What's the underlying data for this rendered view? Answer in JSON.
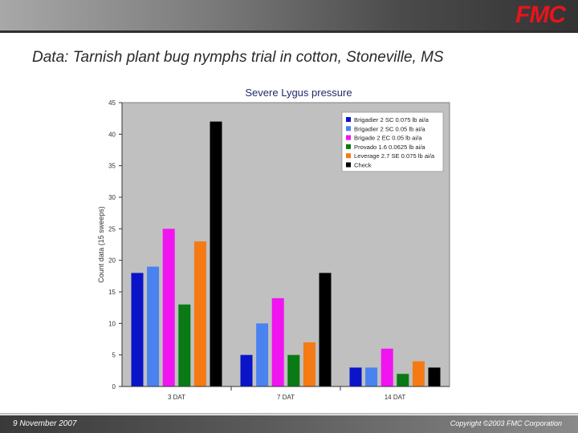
{
  "header": {
    "logo_text": "FMC",
    "logo_color": "#e8141c"
  },
  "slide": {
    "title": "Data: Tarnish plant bug nymphs trial in cotton, Stoneville, MS"
  },
  "chart_data": {
    "type": "bar",
    "title": "Severe Lygus pressure",
    "ylabel": "Count data (15 sweeps)",
    "xlabel": "",
    "ylim": [
      0,
      45
    ],
    "yticks": [
      0,
      5,
      10,
      15,
      20,
      25,
      30,
      35,
      40,
      45
    ],
    "grid": false,
    "legend_position": "top-right",
    "plot_background": "#c0c0c0",
    "categories": [
      "3 DAT",
      "7 DAT",
      "14 DAT"
    ],
    "series": [
      {
        "name": "Brigadier 2 SC 0.075 lb ai/a",
        "color": "#0a14c8",
        "values": [
          18,
          5,
          3
        ]
      },
      {
        "name": "Brigadier 2 SC 0.05 lb ai/a",
        "color": "#4a82f0",
        "values": [
          19,
          10,
          3
        ]
      },
      {
        "name": "Brigade 2 EC 0.05 lb ai/a",
        "color": "#f014f0",
        "values": [
          25,
          14,
          6
        ]
      },
      {
        "name": "Provado 1.6 0.0625 lb ai/a",
        "color": "#0a7a14",
        "values": [
          13,
          5,
          2
        ]
      },
      {
        "name": "Leverage 2.7 SE 0.075 lb ai/a",
        "color": "#f57a14",
        "values": [
          23,
          7,
          4
        ]
      },
      {
        "name": "Check",
        "color": "#000000",
        "values": [
          42,
          18,
          3
        ]
      }
    ]
  },
  "footer": {
    "date": "9 November 2007",
    "copyright": "Copyright ©2003 FMC Corporation"
  }
}
